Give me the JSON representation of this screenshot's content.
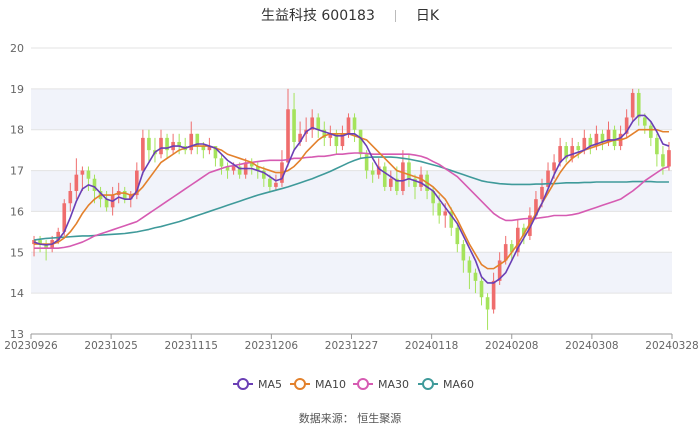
{
  "header": {
    "stock_name": "生益科技 600183",
    "period": "日K"
  },
  "source_text": "数据来源： 恒生聚源",
  "colors": {
    "up": "#ef6d6d",
    "down": "#a5e35c",
    "MA5": "#6a3fb5",
    "MA10": "#e3812c",
    "MA30": "#d65bb2",
    "MA60": "#3f9a9a",
    "band": "#f1f3fa",
    "grid": "#e3e3e3"
  },
  "chart_data": {
    "type": "candlestick",
    "ylim": [
      13,
      20
    ],
    "yticks": [
      13,
      14,
      15,
      16,
      17,
      18,
      19,
      20
    ],
    "xlabels": [
      "20230926",
      "20231025",
      "20231115",
      "20231206",
      "20231227",
      "20240118",
      "20240208",
      "20240308",
      "20240328"
    ],
    "legend_position": "bottom",
    "legend": [
      "MA5",
      "MA10",
      "MA30",
      "MA60"
    ],
    "candles": [
      [
        15.2,
        15.3,
        14.9,
        15.4
      ],
      [
        15.3,
        15.2,
        15.0,
        15.4
      ],
      [
        15.2,
        15.1,
        14.8,
        15.3
      ],
      [
        15.1,
        15.3,
        15.0,
        15.4
      ],
      [
        15.3,
        15.5,
        15.2,
        15.6
      ],
      [
        15.5,
        16.2,
        15.4,
        16.3
      ],
      [
        16.2,
        16.5,
        16.0,
        16.7
      ],
      [
        16.5,
        16.9,
        16.3,
        17.3
      ],
      [
        16.9,
        17.0,
        16.5,
        17.1
      ],
      [
        17.0,
        16.8,
        16.5,
        17.1
      ],
      [
        16.8,
        16.5,
        16.2,
        16.9
      ],
      [
        16.5,
        16.3,
        16.1,
        16.6
      ],
      [
        16.3,
        16.1,
        16.0,
        16.5
      ],
      [
        16.1,
        16.4,
        15.9,
        16.6
      ],
      [
        16.4,
        16.5,
        16.2,
        16.7
      ],
      [
        16.5,
        16.3,
        16.2,
        16.6
      ],
      [
        16.3,
        16.4,
        16.1,
        16.5
      ],
      [
        16.4,
        17.0,
        16.3,
        17.2
      ],
      [
        17.0,
        17.8,
        16.9,
        18.0
      ],
      [
        17.8,
        17.5,
        17.2,
        18.0
      ],
      [
        17.5,
        17.4,
        17.2,
        17.8
      ],
      [
        17.4,
        17.8,
        17.3,
        18.0
      ],
      [
        17.8,
        17.5,
        17.3,
        17.9
      ],
      [
        17.5,
        17.7,
        17.4,
        17.9
      ],
      [
        17.7,
        17.6,
        17.4,
        17.9
      ],
      [
        17.6,
        17.5,
        17.4,
        17.8
      ],
      [
        17.5,
        17.9,
        17.4,
        18.2
      ],
      [
        17.9,
        17.6,
        17.4,
        17.9
      ],
      [
        17.6,
        17.5,
        17.3,
        17.7
      ],
      [
        17.5,
        17.6,
        17.4,
        17.8
      ],
      [
        17.6,
        17.3,
        17.1,
        17.6
      ],
      [
        17.3,
        17.1,
        16.9,
        17.4
      ],
      [
        17.1,
        17.0,
        16.8,
        17.2
      ],
      [
        17.0,
        17.1,
        16.9,
        17.2
      ],
      [
        17.1,
        16.9,
        16.8,
        17.2
      ],
      [
        16.9,
        17.2,
        16.8,
        17.3
      ],
      [
        17.2,
        17.1,
        16.9,
        17.3
      ],
      [
        17.1,
        17.0,
        16.8,
        17.2
      ],
      [
        17.0,
        16.8,
        16.6,
        17.1
      ],
      [
        16.8,
        16.6,
        16.5,
        16.9
      ],
      [
        16.6,
        16.7,
        16.5,
        16.9
      ],
      [
        16.7,
        17.2,
        16.6,
        17.5
      ],
      [
        17.2,
        18.5,
        17.1,
        19.0
      ],
      [
        18.5,
        17.7,
        17.5,
        18.9
      ],
      [
        17.7,
        17.9,
        17.6,
        18.2
      ],
      [
        17.9,
        18.0,
        17.7,
        18.3
      ],
      [
        18.0,
        18.3,
        17.8,
        18.5
      ],
      [
        18.3,
        18.0,
        17.8,
        18.4
      ],
      [
        18.0,
        17.8,
        17.6,
        18.2
      ],
      [
        17.8,
        17.9,
        17.6,
        18.1
      ],
      [
        17.9,
        17.6,
        17.4,
        18.0
      ],
      [
        17.6,
        17.9,
        17.5,
        18.1
      ],
      [
        17.9,
        18.3,
        17.8,
        18.4
      ],
      [
        18.3,
        18.0,
        17.7,
        18.4
      ],
      [
        18.0,
        17.4,
        17.3,
        18.0
      ],
      [
        17.4,
        17.0,
        16.8,
        17.5
      ],
      [
        17.0,
        16.9,
        16.7,
        17.2
      ],
      [
        16.9,
        17.1,
        16.8,
        17.3
      ],
      [
        17.1,
        16.6,
        16.5,
        17.2
      ],
      [
        16.6,
        16.8,
        16.5,
        17.0
      ],
      [
        16.8,
        16.5,
        16.4,
        17.1
      ],
      [
        16.5,
        17.2,
        16.4,
        17.5
      ],
      [
        17.2,
        16.8,
        16.6,
        17.4
      ],
      [
        16.8,
        16.6,
        16.3,
        16.9
      ],
      [
        16.6,
        16.9,
        16.5,
        17.1
      ],
      [
        16.9,
        16.5,
        16.3,
        17.0
      ],
      [
        16.5,
        16.2,
        15.9,
        16.6
      ],
      [
        16.2,
        15.9,
        15.7,
        16.4
      ],
      [
        15.9,
        16.0,
        15.6,
        16.2
      ],
      [
        16.0,
        15.6,
        15.4,
        16.1
      ],
      [
        15.6,
        15.2,
        15.0,
        15.7
      ],
      [
        15.2,
        14.8,
        14.5,
        15.3
      ],
      [
        14.8,
        14.5,
        14.1,
        14.9
      ],
      [
        14.5,
        14.3,
        14.0,
        14.6
      ],
      [
        14.3,
        13.9,
        13.7,
        14.4
      ],
      [
        13.9,
        13.6,
        13.1,
        14.0
      ],
      [
        13.6,
        14.3,
        13.5,
        14.5
      ],
      [
        14.3,
        14.8,
        14.2,
        15.0
      ],
      [
        14.8,
        15.2,
        14.7,
        15.4
      ],
      [
        15.2,
        15.0,
        14.8,
        15.3
      ],
      [
        15.0,
        15.6,
        14.9,
        15.8
      ],
      [
        15.6,
        15.4,
        15.2,
        15.7
      ],
      [
        15.4,
        15.9,
        15.3,
        16.1
      ],
      [
        15.9,
        16.3,
        15.8,
        16.5
      ],
      [
        16.3,
        16.6,
        16.1,
        16.8
      ],
      [
        16.6,
        17.0,
        16.5,
        17.2
      ],
      [
        17.0,
        17.2,
        16.8,
        17.4
      ],
      [
        17.2,
        17.6,
        17.1,
        17.8
      ],
      [
        17.6,
        17.3,
        17.2,
        17.7
      ],
      [
        17.3,
        17.6,
        17.2,
        17.8
      ],
      [
        17.6,
        17.5,
        17.3,
        17.7
      ],
      [
        17.5,
        17.8,
        17.4,
        18.0
      ],
      [
        17.8,
        17.6,
        17.4,
        17.9
      ],
      [
        17.6,
        17.9,
        17.5,
        18.1
      ],
      [
        17.9,
        17.7,
        17.5,
        18.0
      ],
      [
        17.7,
        18.0,
        17.6,
        18.2
      ],
      [
        18.0,
        17.6,
        17.5,
        18.1
      ],
      [
        17.6,
        17.9,
        17.5,
        18.1
      ],
      [
        17.9,
        18.3,
        17.8,
        18.5
      ],
      [
        18.3,
        18.9,
        18.2,
        19.0
      ],
      [
        18.9,
        18.3,
        18.1,
        19.0
      ],
      [
        18.3,
        18.1,
        17.9,
        18.4
      ],
      [
        18.1,
        17.8,
        17.6,
        18.2
      ],
      [
        17.8,
        17.4,
        17.1,
        17.9
      ],
      [
        17.4,
        17.1,
        16.9,
        17.6
      ],
      [
        17.1,
        17.5,
        17.0,
        17.7
      ]
    ],
    "ma5": [
      15.25,
      15.2,
      15.18,
      15.2,
      15.3,
      15.5,
      15.85,
      16.25,
      16.55,
      16.65,
      16.6,
      16.45,
      16.3,
      16.25,
      16.35,
      16.3,
      16.3,
      16.5,
      16.95,
      17.2,
      17.45,
      17.55,
      17.55,
      17.6,
      17.6,
      17.55,
      17.6,
      17.65,
      17.65,
      17.6,
      17.55,
      17.4,
      17.25,
      17.15,
      17.05,
      17.05,
      17.05,
      17.0,
      16.95,
      16.85,
      16.75,
      16.8,
      17.15,
      17.5,
      17.7,
      17.95,
      18.05,
      18.0,
      17.95,
      17.9,
      17.85,
      17.85,
      17.9,
      17.9,
      17.8,
      17.6,
      17.3,
      17.05,
      16.95,
      16.85,
      16.75,
      16.75,
      16.8,
      16.75,
      16.7,
      16.6,
      16.5,
      16.3,
      16.1,
      15.9,
      15.7,
      15.4,
      15.1,
      14.8,
      14.4,
      14.25,
      14.25,
      14.35,
      14.5,
      14.8,
      15.1,
      15.35,
      15.6,
      15.9,
      16.2,
      16.55,
      16.9,
      17.2,
      17.35,
      17.4,
      17.45,
      17.5,
      17.6,
      17.65,
      17.7,
      17.75,
      17.75,
      17.8,
      17.95,
      18.2,
      18.35,
      18.35,
      18.2,
      17.95,
      17.65,
      17.6
    ],
    "ma10": [
      15.2,
      15.2,
      15.2,
      15.2,
      15.25,
      15.35,
      15.5,
      15.7,
      15.95,
      16.15,
      16.3,
      16.4,
      16.4,
      16.4,
      16.45,
      16.45,
      16.4,
      16.45,
      16.6,
      16.8,
      17.0,
      17.2,
      17.3,
      17.4,
      17.5,
      17.55,
      17.6,
      17.6,
      17.6,
      17.6,
      17.55,
      17.5,
      17.4,
      17.35,
      17.3,
      17.25,
      17.2,
      17.1,
      17.05,
      17.0,
      16.95,
      16.95,
      17.0,
      17.1,
      17.25,
      17.45,
      17.6,
      17.75,
      17.85,
      17.9,
      17.9,
      17.9,
      17.9,
      17.85,
      17.8,
      17.75,
      17.6,
      17.45,
      17.3,
      17.15,
      17.0,
      16.95,
      16.9,
      16.85,
      16.8,
      16.7,
      16.6,
      16.45,
      16.3,
      16.05,
      15.8,
      15.5,
      15.2,
      14.95,
      14.7,
      14.6,
      14.6,
      14.7,
      14.8,
      15.0,
      15.2,
      15.45,
      15.7,
      15.95,
      16.2,
      16.45,
      16.7,
      16.95,
      17.15,
      17.3,
      17.4,
      17.5,
      17.55,
      17.6,
      17.65,
      17.7,
      17.75,
      17.75,
      17.8,
      17.9,
      18.0,
      18.0,
      18.0,
      18.0,
      17.95,
      17.95
    ],
    "ma30": [
      15.1,
      15.1,
      15.1,
      15.1,
      15.1,
      15.12,
      15.15,
      15.2,
      15.25,
      15.32,
      15.4,
      15.45,
      15.5,
      15.55,
      15.6,
      15.65,
      15.7,
      15.75,
      15.85,
      15.95,
      16.05,
      16.15,
      16.25,
      16.35,
      16.45,
      16.55,
      16.65,
      16.75,
      16.85,
      16.95,
      17.0,
      17.05,
      17.1,
      17.12,
      17.15,
      17.18,
      17.2,
      17.22,
      17.24,
      17.25,
      17.25,
      17.25,
      17.27,
      17.3,
      17.3,
      17.32,
      17.33,
      17.35,
      17.35,
      17.37,
      17.4,
      17.4,
      17.42,
      17.43,
      17.43,
      17.42,
      17.4,
      17.4,
      17.4,
      17.4,
      17.4,
      17.4,
      17.4,
      17.38,
      17.35,
      17.3,
      17.22,
      17.15,
      17.05,
      16.95,
      16.85,
      16.7,
      16.55,
      16.4,
      16.25,
      16.1,
      15.95,
      15.85,
      15.78,
      15.78,
      15.8,
      15.82,
      15.83,
      15.83,
      15.85,
      15.87,
      15.9,
      15.9,
      15.9,
      15.92,
      15.95,
      16.0,
      16.05,
      16.1,
      16.15,
      16.2,
      16.25,
      16.3,
      16.4,
      16.5,
      16.62,
      16.75,
      16.85,
      16.95,
      17.05,
      17.1
    ],
    "ma60": [
      15.3,
      15.32,
      15.34,
      15.35,
      15.36,
      15.37,
      15.38,
      15.39,
      15.4,
      15.4,
      15.41,
      15.42,
      15.43,
      15.44,
      15.45,
      15.46,
      15.48,
      15.5,
      15.53,
      15.56,
      15.6,
      15.63,
      15.67,
      15.71,
      15.75,
      15.8,
      15.85,
      15.9,
      15.95,
      16.0,
      16.05,
      16.1,
      16.15,
      16.2,
      16.25,
      16.3,
      16.35,
      16.4,
      16.44,
      16.48,
      16.52,
      16.56,
      16.6,
      16.65,
      16.7,
      16.75,
      16.8,
      16.86,
      16.92,
      16.98,
      17.05,
      17.12,
      17.19,
      17.25,
      17.3,
      17.32,
      17.33,
      17.33,
      17.33,
      17.33,
      17.32,
      17.3,
      17.28,
      17.25,
      17.22,
      17.18,
      17.14,
      17.1,
      17.05,
      17.0,
      16.95,
      16.9,
      16.85,
      16.8,
      16.75,
      16.72,
      16.7,
      16.68,
      16.67,
      16.66,
      16.66,
      16.66,
      16.66,
      16.67,
      16.67,
      16.68,
      16.68,
      16.69,
      16.7,
      16.7,
      16.7,
      16.71,
      16.71,
      16.72,
      16.72,
      16.72,
      16.72,
      16.72,
      16.72,
      16.73,
      16.73,
      16.73,
      16.73,
      16.72,
      16.72,
      16.72
    ]
  }
}
